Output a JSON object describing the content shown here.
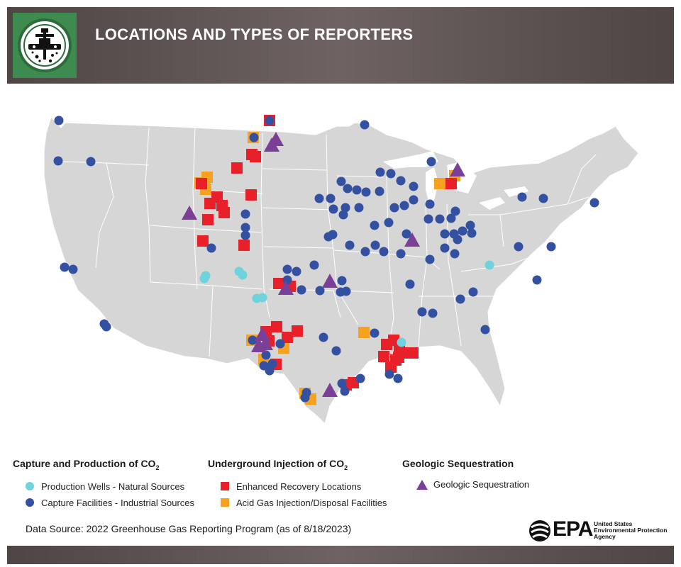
{
  "header": {
    "title": "LOCATIONS AND TYPES OF REPORTERS",
    "logo_icon": "injection-well-icon"
  },
  "colors": {
    "production_wells": "#6fd3dd",
    "capture_facilities": "#3450a0",
    "enhanced_recovery": "#e8202a",
    "acid_gas": "#f6a21e",
    "geologic": "#7b3f98",
    "land": "#d6d6d6",
    "border": "#ffffff"
  },
  "legend": {
    "groups": [
      {
        "heading": "Capture and Production of CO",
        "heading_sub": "2",
        "items": [
          {
            "label": "Production Wells - Natural Sources",
            "marker": "circle",
            "color": "#6fd3dd"
          },
          {
            "label": "Capture Facilities - Industrial Sources",
            "marker": "circle",
            "color": "#3450a0"
          }
        ]
      },
      {
        "heading": "Underground Injection of CO",
        "heading_sub": "2",
        "items": [
          {
            "label": "Enhanced Recovery Locations",
            "marker": "square",
            "color": "#e8202a"
          },
          {
            "label": "Acid Gas Injection/Disposal Facilities",
            "marker": "square",
            "color": "#f6a21e"
          }
        ]
      },
      {
        "heading": "Geologic Sequestration",
        "heading_sub": "",
        "items": [
          {
            "label": "Geologic Sequestration",
            "marker": "triangle",
            "color": "#7b3f98"
          }
        ]
      }
    ]
  },
  "source": "Data Source: 2022 Greenhouse Gas Reporting Program (as of 8/18/2023)",
  "agency": {
    "short": "EPA",
    "lines": [
      "United States",
      "Environmental Protection",
      "Agency"
    ]
  }
}
